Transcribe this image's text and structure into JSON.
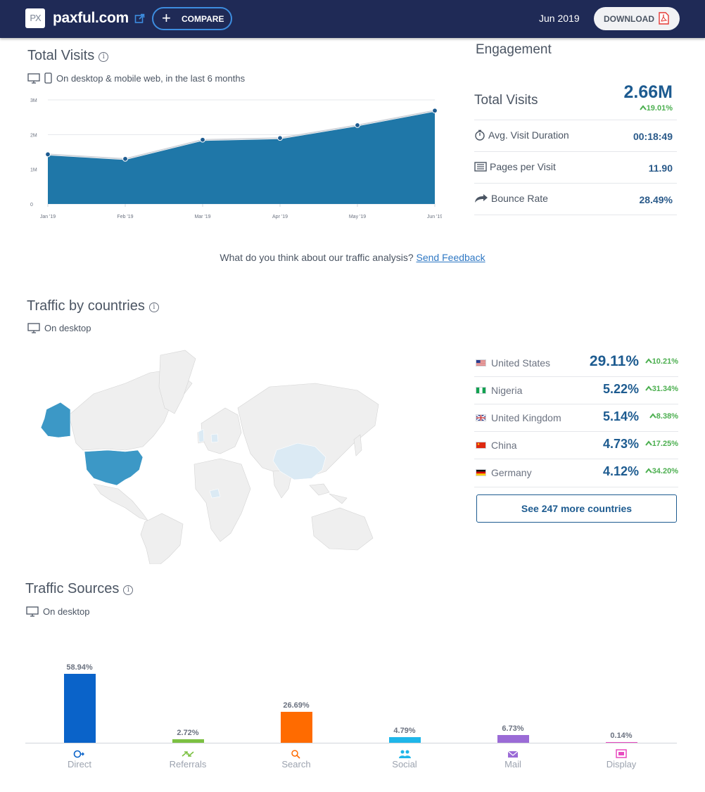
{
  "header": {
    "logo_text": "PX",
    "site": "paxful.com",
    "compare_label": "COMPARE",
    "date": "Jun 2019",
    "download_label": "DOWNLOAD"
  },
  "visits": {
    "title": "Total Visits",
    "subtitle": "On desktop & mobile web, in the last 6 months",
    "chart_data": {
      "type": "area",
      "x": [
        "Jan '19",
        "Feb '19",
        "Mar '19",
        "Apr '19",
        "May '19",
        "Jun '19"
      ],
      "values": [
        1.4,
        1.27,
        1.82,
        1.87,
        2.24,
        2.66
      ],
      "y_ticks": [
        "0",
        "1M",
        "2M",
        "3M"
      ],
      "ylim": [
        0,
        3
      ],
      "y_unit": "M",
      "grid": true,
      "colors": {
        "fill": "#1f77a8",
        "line": "#d1d5db",
        "point": "#1d5b90"
      }
    }
  },
  "engagement": {
    "title": "Engagement",
    "total_visits_label": "Total Visits",
    "total_visits_value": "2.66M",
    "total_visits_change": "19.01%",
    "rows": [
      {
        "label": "Avg. Visit Duration",
        "value": "00:18:49",
        "icon": "stopwatch-icon"
      },
      {
        "label": "Pages per Visit",
        "value": "11.90",
        "icon": "pages-icon"
      },
      {
        "label": "Bounce Rate",
        "value": "28.49%",
        "icon": "bounce-arrow-icon"
      }
    ]
  },
  "feedback": {
    "question": "What do you think about our traffic analysis?",
    "link": "Send Feedback"
  },
  "countries": {
    "title": "Traffic by countries",
    "subtitle": "On desktop",
    "rows": [
      {
        "name": "United States",
        "share": "29.11%",
        "change": "10.21%",
        "flag": "us-flag-icon"
      },
      {
        "name": "Nigeria",
        "share": "5.22%",
        "change": "31.34%",
        "flag": "ng-flag-icon"
      },
      {
        "name": "United Kingdom",
        "share": "5.14%",
        "change": "8.38%",
        "flag": "uk-flag-icon"
      },
      {
        "name": "China",
        "share": "4.73%",
        "change": "17.25%",
        "flag": "cn-flag-icon"
      },
      {
        "name": "Germany",
        "share": "4.12%",
        "change": "34.20%",
        "flag": "de-flag-icon"
      }
    ],
    "more_label": "See 247 more countries",
    "colors": {
      "highlight_strong": "#3c98c6",
      "highlight_light": "#dbeaf4",
      "land": "#efefef"
    }
  },
  "sources": {
    "title": "Traffic Sources",
    "subtitle": "On desktop",
    "chart_data": {
      "type": "bar",
      "categories": [
        "Direct",
        "Referrals",
        "Search",
        "Social",
        "Mail",
        "Display"
      ],
      "values": [
        58.94,
        2.72,
        26.69,
        4.79,
        6.73,
        0.14
      ],
      "labels": [
        "58.94%",
        "2.72%",
        "26.69%",
        "4.79%",
        "6.73%",
        "0.14%"
      ],
      "colors": [
        "#0a63c9",
        "#7cc142",
        "#ff6b00",
        "#1fb6e9",
        "#9b6bd6",
        "#e84bbf"
      ]
    }
  }
}
